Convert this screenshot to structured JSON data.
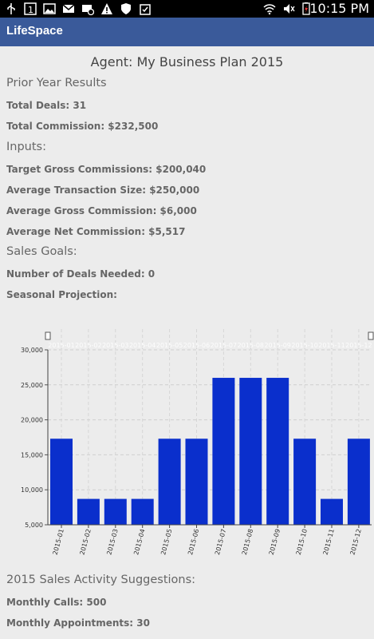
{
  "status_bar": {
    "time": "10:15 PM",
    "icons": [
      "usb-icon",
      "notification-1-icon",
      "image-icon",
      "gmail-icon",
      "mail-blocked-icon",
      "warning-icon",
      "shield-icon",
      "clipboard-icon",
      "wifi-icon",
      "mute-icon",
      "battery-icon"
    ]
  },
  "app": {
    "title": "LifeSpace"
  },
  "plan": {
    "title": "Agent: My Business Plan 2015",
    "prior": {
      "heading": "Prior Year Results",
      "total_deals": "Total Deals: 31",
      "total_commission": "Total Commission: $232,500"
    },
    "inputs": {
      "heading": "Inputs:",
      "target_gross": "Target Gross Commissions: $200,040",
      "avg_transaction": "Average Transaction Size: $250,000",
      "avg_gross": "Average Gross Commission: $6,000",
      "avg_net": "Average Net Commission: $5,517"
    },
    "goals": {
      "heading": "Sales Goals:",
      "deals_needed": "Number of Deals Needed: 0",
      "seasonal": "Seasonal Projection:"
    },
    "suggestions": {
      "heading": "2015 Sales Activity Suggestions:",
      "calls": "Monthly Calls: 500",
      "appointments": "Monthly Appointments: 30"
    }
  },
  "chart_data": {
    "type": "bar",
    "categories": [
      "2015-01",
      "2015-02",
      "2015-03",
      "2015-04",
      "2015-05",
      "2015-06",
      "2015-07",
      "2015-08",
      "2015-09",
      "2015-10",
      "2015-11",
      "2015-12"
    ],
    "values": [
      17300,
      8700,
      8700,
      8700,
      17300,
      17300,
      26000,
      26000,
      26000,
      17300,
      8700,
      17300
    ],
    "ylim": [
      5000,
      30000
    ],
    "yticks": [
      "5,000",
      "10,000",
      "15,000",
      "20,000",
      "25,000",
      "30,000"
    ],
    "ytick_values": [
      5000,
      10000,
      15000,
      20000,
      25000,
      30000
    ],
    "grid": true,
    "bar_color": "#0a2fcc"
  }
}
